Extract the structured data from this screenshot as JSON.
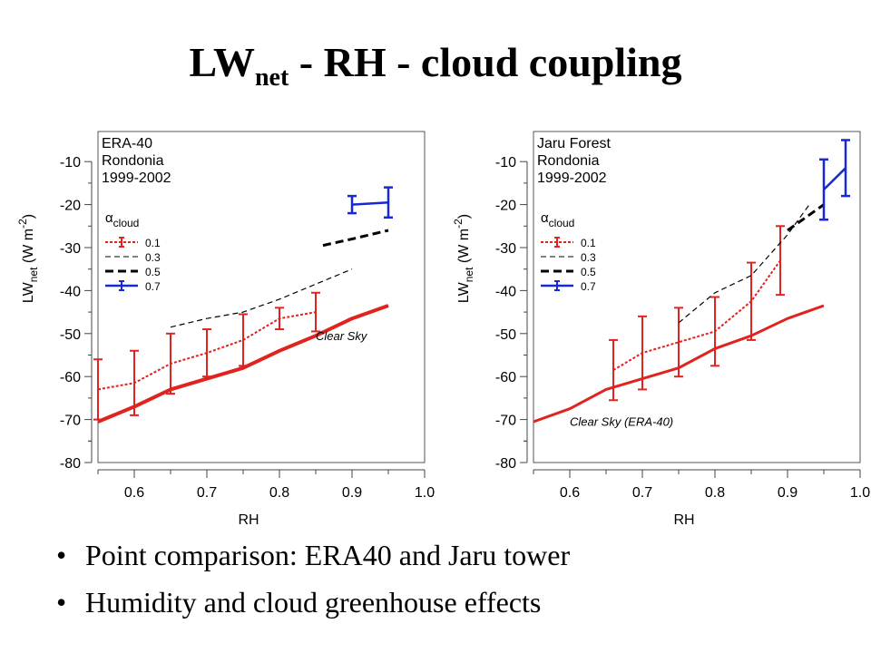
{
  "title": {
    "main": "LW",
    "sub": "net",
    "rest": " - RH - cloud coupling"
  },
  "bullets": [
    "Point comparison: ERA40 and Jaru tower",
    "Humidity and cloud greenhouse effects"
  ],
  "chart_data": [
    {
      "type": "line",
      "xlabel": "RH",
      "ylabel_main": "LW",
      "ylabel_sub": "net",
      "ylabel_units": " (W m",
      "ylabel_exp": "-2",
      "ylabel_close": ")",
      "xlim": [
        0.55,
        1.0
      ],
      "ylim": [
        -80,
        -3
      ],
      "xticks": [
        "0.6",
        "0.7",
        "0.8",
        "0.9",
        "1.0"
      ],
      "yticks": [
        "-10",
        "-20",
        "-30",
        "-40",
        "-50",
        "-60",
        "-70",
        "-80"
      ],
      "info": [
        "ERA-40",
        "Rondonia",
        "1999-2002"
      ],
      "legend_title": "α",
      "legend_title_sub": "cloud",
      "legend": [
        {
          "name": "0.1",
          "color": "#e0231f",
          "dash": "3,2",
          "width": 2,
          "errbar": true
        },
        {
          "name": "0.3",
          "color": "#000000",
          "dash": "6,4",
          "width": 1,
          "errbar": false
        },
        {
          "name": "0.5",
          "color": "#000000",
          "dash": "9,5",
          "width": 3,
          "errbar": false
        },
        {
          "name": "0.7",
          "color": "#1728d6",
          "dash": "",
          "width": 2.5,
          "errbar": true
        }
      ],
      "clear_sky_label": "Clear Sky",
      "series": [
        {
          "name": "Clear Sky",
          "color": "#e0231f",
          "width": 4,
          "dash": "",
          "x": [
            0.55,
            0.6,
            0.65,
            0.7,
            0.75,
            0.8,
            0.85,
            0.9,
            0.95
          ],
          "y": [
            -70.5,
            -67,
            -63,
            -60.5,
            -58,
            -54,
            -50.5,
            -46.5,
            -43.5
          ]
        },
        {
          "name": "0.1",
          "color": "#e0231f",
          "width": 2,
          "dash": "3,2",
          "x": [
            0.55,
            0.6,
            0.65,
            0.7,
            0.75,
            0.8,
            0.85
          ],
          "y": [
            -63,
            -61.5,
            -57,
            -54.5,
            -51.5,
            -46.5,
            -45
          ],
          "err": [
            7,
            7.5,
            7,
            5.5,
            6,
            2.5,
            4.5
          ]
        },
        {
          "name": "0.3",
          "color": "#000000",
          "width": 1.2,
          "dash": "6,4",
          "x": [
            0.65,
            0.7,
            0.75,
            0.8,
            0.85,
            0.9
          ],
          "y": [
            -48.5,
            -46.5,
            -45,
            -42,
            -38.5,
            -35
          ]
        },
        {
          "name": "0.5",
          "color": "#000000",
          "width": 3,
          "dash": "9,5",
          "x": [
            0.86,
            0.9,
            0.95
          ],
          "y": [
            -29.5,
            -28,
            -26
          ]
        },
        {
          "name": "0.7",
          "color": "#1728d6",
          "width": 2.5,
          "dash": "",
          "x": [
            0.9,
            0.95
          ],
          "y": [
            -20,
            -19.5
          ],
          "err": [
            2,
            3.5
          ]
        }
      ]
    },
    {
      "type": "line",
      "xlabel": "RH",
      "ylabel_main": "LW",
      "ylabel_sub": "net",
      "ylabel_units": " (W m",
      "ylabel_exp": "-2",
      "ylabel_close": ")",
      "xlim": [
        0.55,
        1.0
      ],
      "ylim": [
        -80,
        -3
      ],
      "xticks": [
        "0.6",
        "0.7",
        "0.8",
        "0.9",
        "1.0"
      ],
      "yticks": [
        "-10",
        "-20",
        "-30",
        "-40",
        "-50",
        "-60",
        "-70",
        "-80"
      ],
      "info": [
        "Jaru Forest",
        "Rondonia",
        "1999-2002"
      ],
      "legend_title": "α",
      "legend_title_sub": "cloud",
      "legend": [
        {
          "name": "0.1",
          "color": "#e0231f",
          "dash": "3,2",
          "width": 2,
          "errbar": true
        },
        {
          "name": "0.3",
          "color": "#000000",
          "dash": "6,4",
          "width": 1,
          "errbar": false
        },
        {
          "name": "0.5",
          "color": "#000000",
          "dash": "9,5",
          "width": 3,
          "errbar": false
        },
        {
          "name": "0.7",
          "color": "#1728d6",
          "dash": "",
          "width": 2.5,
          "errbar": true
        }
      ],
      "clear_sky_label": "Clear Sky (ERA-40)",
      "series": [
        {
          "name": "Clear Sky (ERA-40)",
          "color": "#e0231f",
          "width": 3,
          "dash": "",
          "x": [
            0.55,
            0.6,
            0.65,
            0.7,
            0.75,
            0.8,
            0.85,
            0.9,
            0.95
          ],
          "y": [
            -70.5,
            -67.5,
            -63,
            -60.5,
            -58,
            -53.5,
            -50.5,
            -46.5,
            -43.5
          ]
        },
        {
          "name": "0.1",
          "color": "#e0231f",
          "width": 2,
          "dash": "3,2",
          "x": [
            0.66,
            0.7,
            0.75,
            0.8,
            0.85,
            0.89
          ],
          "y": [
            -58.5,
            -54.5,
            -52,
            -49.5,
            -42.5,
            -33
          ],
          "err": [
            7,
            8.5,
            8,
            8,
            9,
            8
          ]
        },
        {
          "name": "0.3",
          "color": "#000000",
          "width": 1.2,
          "dash": "6,4",
          "x": [
            0.75,
            0.8,
            0.85,
            0.9,
            0.93
          ],
          "y": [
            -47.5,
            -40.5,
            -36.5,
            -27,
            -20
          ]
        },
        {
          "name": "0.5",
          "color": "#000000",
          "width": 3,
          "dash": "9,5",
          "x": [
            0.9,
            0.95
          ],
          "y": [
            -26,
            -20
          ]
        },
        {
          "name": "0.7",
          "color": "#1728d6",
          "width": 2.5,
          "dash": "",
          "x": [
            0.95,
            0.98
          ],
          "y": [
            -16.5,
            -11.5
          ],
          "err": [
            7,
            6.5
          ]
        }
      ]
    }
  ]
}
